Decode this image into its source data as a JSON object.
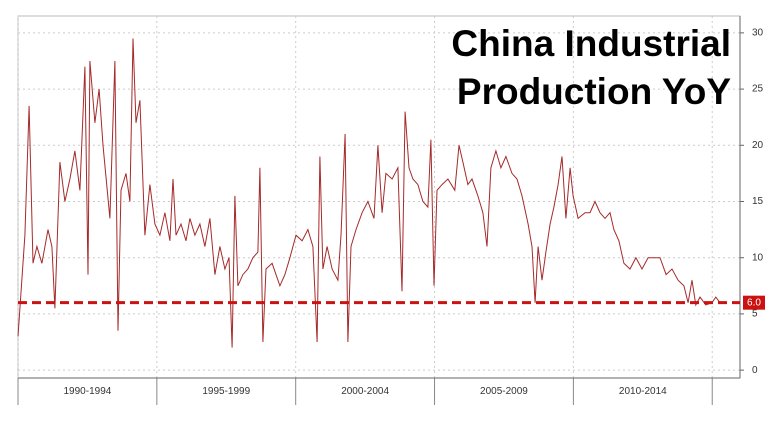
{
  "chart_data": {
    "type": "line",
    "title": "China Industrial Production YoY",
    "categories": [
      "1990-1994",
      "1995-1999",
      "2000-2004",
      "2005-2009",
      "2010-2014"
    ],
    "x": [
      1990.0,
      1990.25,
      1990.4,
      1990.54,
      1990.68,
      1990.86,
      1991.08,
      1991.22,
      1991.33,
      1991.51,
      1991.69,
      1991.87,
      1992.05,
      1992.23,
      1992.41,
      1992.52,
      1992.59,
      1992.77,
      1992.92,
      1993.06,
      1993.31,
      1993.49,
      1993.6,
      1993.71,
      1993.89,
      1994.03,
      1994.14,
      1994.25,
      1994.39,
      1994.57,
      1994.75,
      1994.93,
      1995.11,
      1995.29,
      1995.47,
      1995.58,
      1995.69,
      1995.87,
      1996.05,
      1996.19,
      1996.37,
      1996.55,
      1996.73,
      1996.91,
      1997.09,
      1997.27,
      1997.45,
      1997.6,
      1997.71,
      1997.81,
      1997.92,
      1998.1,
      1998.28,
      1998.46,
      1998.64,
      1998.71,
      1998.82,
      1998.93,
      1999.15,
      1999.43,
      1999.61,
      1999.79,
      2000.01,
      2000.23,
      2000.44,
      2000.62,
      2000.77,
      2000.87,
      2000.98,
      2001.13,
      2001.31,
      2001.52,
      2001.63,
      2001.78,
      2001.88,
      2001.99,
      2002.17,
      2002.39,
      2002.6,
      2002.82,
      2002.96,
      2003.11,
      2003.25,
      2003.47,
      2003.68,
      2003.83,
      2003.94,
      2004.08,
      2004.22,
      2004.4,
      2004.58,
      2004.76,
      2004.87,
      2004.98,
      2005.09,
      2005.27,
      2005.48,
      2005.73,
      2005.88,
      2006.02,
      2006.2,
      2006.35,
      2006.56,
      2006.74,
      2006.89,
      2007.03,
      2007.21,
      2007.39,
      2007.57,
      2007.79,
      2007.97,
      2008.15,
      2008.37,
      2008.51,
      2008.62,
      2008.73,
      2008.87,
      2009.01,
      2009.16,
      2009.3,
      2009.45,
      2009.59,
      2009.73,
      2009.88,
      2009.99,
      2010.17,
      2010.42,
      2010.6,
      2010.78,
      2010.96,
      2011.14,
      2011.32,
      2011.46,
      2011.64,
      2011.82,
      2012.04,
      2012.25,
      2012.47,
      2012.69,
      2012.9,
      2013.12,
      2013.34,
      2013.55,
      2013.77,
      2013.98,
      2014.13,
      2014.27,
      2014.41,
      2014.56,
      2014.77,
      2014.99,
      2015.13,
      2015.28
    ],
    "series": [
      {
        "name": "China Industrial Production YoY",
        "color": "#a52a2a",
        "values": [
          3,
          12,
          23.5,
          9.5,
          11,
          9.5,
          12.5,
          11,
          5.5,
          18.5,
          15,
          17,
          19.5,
          16,
          27,
          8.5,
          27.5,
          22,
          25,
          20,
          13.5,
          27.5,
          3.5,
          16,
          17.5,
          15,
          29.5,
          22,
          24,
          12,
          16.5,
          13,
          12,
          14,
          11.5,
          17,
          12,
          13,
          11.5,
          13.5,
          12,
          13,
          11,
          13.5,
          8.5,
          11,
          9,
          10,
          2,
          15.5,
          7.5,
          8.5,
          9,
          10,
          10.5,
          18,
          2.5,
          9,
          9.5,
          7.5,
          8.5,
          10,
          12,
          11.5,
          12.5,
          11,
          2.5,
          19,
          9,
          11,
          9,
          8,
          12,
          21,
          2.5,
          11,
          12.5,
          14,
          15,
          13.5,
          20,
          14,
          17.5,
          17,
          18,
          7,
          23,
          18,
          17,
          16.5,
          15,
          14.5,
          20.5,
          7.5,
          16,
          16.5,
          17,
          16,
          20,
          18.5,
          16.5,
          17,
          15.5,
          14,
          11,
          18,
          19.5,
          18,
          19,
          17.5,
          17,
          15.5,
          13,
          11,
          6,
          11,
          8,
          10.5,
          13,
          14.5,
          16.5,
          19,
          13.5,
          18,
          15.5,
          13.5,
          14,
          14,
          15,
          14,
          13.5,
          14,
          12.5,
          11.5,
          9.5,
          9,
          10,
          9,
          10,
          10,
          10,
          8.5,
          9,
          8,
          7.5,
          6,
          8,
          5.8,
          6.5,
          5.8,
          6,
          6.5,
          6
        ]
      }
    ],
    "reference_line": {
      "value": 6,
      "label": "6.0",
      "color": "#cc1111"
    },
    "xlim": [
      1990,
      2016
    ],
    "xticks": [
      1990,
      1995,
      2000,
      2005,
      2010,
      2015
    ],
    "ylim": [
      -0.7,
      31.5
    ],
    "yticks": [
      0,
      5,
      10,
      15,
      20,
      25,
      30
    ],
    "grid": true
  }
}
